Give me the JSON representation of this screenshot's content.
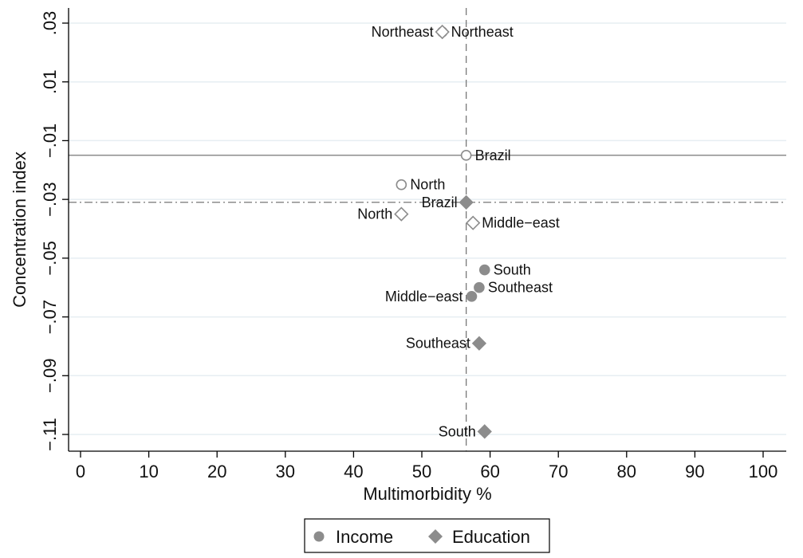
{
  "chart_data": {
    "type": "scatter",
    "xlabel": "Multimorbidity %",
    "ylabel": "Concentration index",
    "xlim": [
      0,
      100
    ],
    "ylim": [
      -0.11,
      0.03
    ],
    "xticks": [
      0,
      10,
      20,
      30,
      40,
      50,
      60,
      70,
      80,
      90,
      100
    ],
    "xtick_labels": [
      "0",
      "10",
      "20",
      "30",
      "40",
      "50",
      "60",
      "70",
      "80",
      "90",
      "100"
    ],
    "yticks": [
      -0.11,
      -0.09,
      -0.07,
      -0.05,
      -0.03,
      -0.01,
      0.01,
      0.03
    ],
    "ytick_labels": [
      "−.11",
      "−.09",
      "−.07",
      "−.05",
      "−.03",
      "−.01",
      ".01",
      ".03"
    ],
    "grid": "horizontal",
    "legend_position": "bottom",
    "reference_lines": {
      "vertical_x": 56.5,
      "income_brazil_y": -0.015,
      "education_brazil_y": -0.031
    },
    "series": [
      {
        "name": "Income",
        "marker": "circle",
        "color": "#8c8c8c",
        "points": [
          {
            "label": "Northeast",
            "x": 53.0,
            "y": 0.027,
            "filled": false,
            "label_side": "right"
          },
          {
            "label": "Brazil",
            "x": 56.5,
            "y": -0.015,
            "filled": false,
            "label_side": "right"
          },
          {
            "label": "North",
            "x": 47.0,
            "y": -0.025,
            "filled": false,
            "label_side": "right"
          },
          {
            "label": "South",
            "x": 59.2,
            "y": -0.054,
            "filled": true,
            "label_side": "right"
          },
          {
            "label": "Southeast",
            "x": 58.4,
            "y": -0.06,
            "filled": true,
            "label_side": "right"
          },
          {
            "label": "Middle−east",
            "x": 57.3,
            "y": -0.063,
            "filled": true,
            "label_side": "left"
          }
        ]
      },
      {
        "name": "Education",
        "marker": "diamond",
        "color": "#8c8c8c",
        "points": [
          {
            "label": "Northeast",
            "x": 53.0,
            "y": 0.027,
            "filled": false,
            "label_side": "left"
          },
          {
            "label": "Brazil",
            "x": 56.5,
            "y": -0.031,
            "filled": true,
            "label_side": "left"
          },
          {
            "label": "North",
            "x": 47.0,
            "y": -0.035,
            "filled": false,
            "label_side": "left"
          },
          {
            "label": "Middle−east",
            "x": 57.5,
            "y": -0.038,
            "filled": false,
            "label_side": "right"
          },
          {
            "label": "Southeast",
            "x": 58.4,
            "y": -0.079,
            "filled": true,
            "label_side": "left"
          },
          {
            "label": "South",
            "x": 59.2,
            "y": -0.109,
            "filled": true,
            "label_side": "left"
          }
        ]
      }
    ]
  },
  "legend": {
    "income_label": "Income",
    "education_label": "Education"
  }
}
